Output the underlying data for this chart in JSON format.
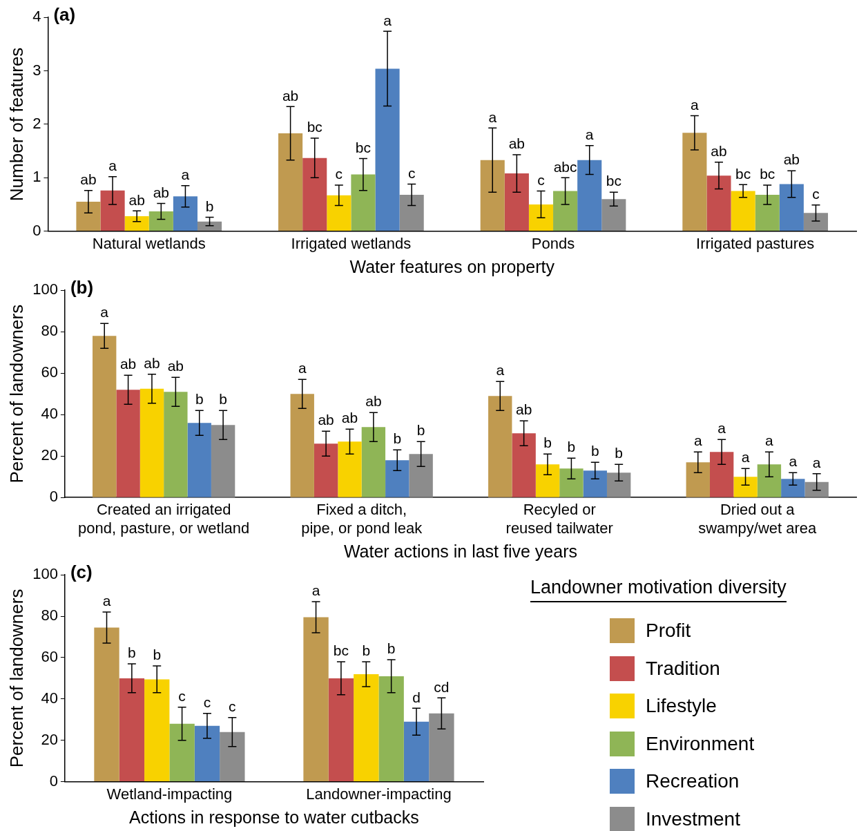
{
  "chart_data": [
    {
      "type": "bar",
      "title": "(a)",
      "xlabel": "Water features on property",
      "ylabel": "Number of features",
      "categories": [
        "Natural wetlands",
        "Irrigated wetlands",
        "Ponds",
        "Irrigated pastures"
      ],
      "ylim": [
        0,
        4
      ],
      "yticks": [
        0,
        1,
        2,
        3,
        4
      ],
      "grid": false,
      "series": [
        {
          "color": "#c09a50",
          "values": [
            0.55,
            1.83,
            1.33,
            1.84
          ],
          "errors": [
            0.21,
            0.5,
            0.6,
            0.32
          ],
          "value_labels": [
            "ab",
            "ab",
            "a",
            "a"
          ]
        },
        {
          "color": "#c44e4e",
          "values": [
            0.76,
            1.37,
            1.08,
            1.04
          ],
          "errors": [
            0.26,
            0.37,
            0.35,
            0.25
          ],
          "value_labels": [
            "a",
            "bc",
            "ab",
            "ab"
          ]
        },
        {
          "color": "#f8d200",
          "values": [
            0.28,
            0.67,
            0.5,
            0.75
          ],
          "errors": [
            0.1,
            0.19,
            0.25,
            0.12
          ],
          "value_labels": [
            "ab",
            "c",
            "c",
            "bc"
          ]
        },
        {
          "color": "#8fb556",
          "values": [
            0.37,
            1.06,
            0.75,
            0.68
          ],
          "errors": [
            0.15,
            0.3,
            0.25,
            0.18
          ],
          "value_labels": [
            "ab",
            "bc",
            "abc",
            "bc"
          ]
        },
        {
          "color": "#4f80bf",
          "values": [
            0.65,
            3.04,
            1.33,
            0.88
          ],
          "errors": [
            0.2,
            0.7,
            0.27,
            0.25
          ],
          "value_labels": [
            "a",
            "a",
            "a",
            "ab"
          ]
        },
        {
          "color": "#8c8c8c",
          "values": [
            0.18,
            0.68,
            0.6,
            0.34
          ],
          "errors": [
            0.08,
            0.2,
            0.13,
            0.15
          ],
          "value_labels": [
            "b",
            "c",
            "bc",
            "c"
          ]
        }
      ]
    },
    {
      "type": "bar",
      "title": "(b)",
      "xlabel": "Water actions in last five years",
      "ylabel": "Percent of landowners",
      "categories": [
        "Created an irrigated\npond, pasture, or wetland",
        "Fixed a ditch,\npipe, or pond leak",
        "Recyled or\nreused tailwater",
        "Dried out a\nswampy/wet area"
      ],
      "ylim": [
        0,
        100
      ],
      "yticks": [
        0,
        20,
        40,
        60,
        80,
        100
      ],
      "grid": false,
      "series": [
        {
          "color": "#c09a50",
          "values": [
            78,
            50,
            49,
            17
          ],
          "errors": [
            6,
            7,
            7,
            5
          ],
          "value_labels": [
            "a",
            "a",
            "a",
            "a"
          ]
        },
        {
          "color": "#c44e4e",
          "values": [
            52,
            26,
            31,
            22
          ],
          "errors": [
            7,
            6,
            6,
            6
          ],
          "value_labels": [
            "ab",
            "ab",
            "ab",
            "a"
          ]
        },
        {
          "color": "#f8d200",
          "values": [
            52.5,
            27,
            16,
            10
          ],
          "errors": [
            7,
            6,
            5,
            4
          ],
          "value_labels": [
            "ab",
            "ab",
            "b",
            "a"
          ]
        },
        {
          "color": "#8fb556",
          "values": [
            51,
            34,
            14,
            16
          ],
          "errors": [
            7,
            7,
            5,
            6
          ],
          "value_labels": [
            "ab",
            "ab",
            "b",
            "a"
          ]
        },
        {
          "color": "#4f80bf",
          "values": [
            36,
            18,
            13,
            9
          ],
          "errors": [
            6,
            5,
            4,
            3
          ],
          "value_labels": [
            "b",
            "b",
            "b",
            "a"
          ]
        },
        {
          "color": "#8c8c8c",
          "values": [
            35,
            21,
            12,
            7.5
          ],
          "errors": [
            7,
            6,
            4,
            4
          ],
          "value_labels": [
            "b",
            "b",
            "b",
            "a"
          ]
        }
      ]
    },
    {
      "type": "bar",
      "title": "(c)",
      "xlabel": "Actions in response to water cutbacks",
      "ylabel": "Percent of landowners",
      "categories": [
        "Wetland-impacting",
        "Landowner-impacting"
      ],
      "ylim": [
        0,
        100
      ],
      "yticks": [
        0,
        20,
        40,
        60,
        80,
        100
      ],
      "grid": false,
      "legend": "right",
      "legend_title": "Landowner motivation diversity",
      "series": [
        {
          "name": "Profit",
          "color": "#c09a50",
          "values": [
            74.5,
            79.5
          ],
          "errors": [
            7.5,
            7.5
          ],
          "value_labels": [
            "a",
            "a"
          ]
        },
        {
          "name": "Tradition",
          "color": "#c44e4e",
          "values": [
            50,
            50
          ],
          "errors": [
            7,
            8
          ],
          "value_labels": [
            "b",
            "bc"
          ]
        },
        {
          "name": "Lifestyle",
          "color": "#f8d200",
          "values": [
            49.5,
            52
          ],
          "errors": [
            6.5,
            6
          ],
          "value_labels": [
            "b",
            "b"
          ]
        },
        {
          "name": "Environment",
          "color": "#8fb556",
          "values": [
            28,
            51
          ],
          "errors": [
            8,
            8
          ],
          "value_labels": [
            "c",
            "b"
          ]
        },
        {
          "name": "Recreation",
          "color": "#4f80bf",
          "values": [
            27,
            29
          ],
          "errors": [
            6,
            6.5
          ],
          "value_labels": [
            "c",
            "d"
          ]
        },
        {
          "name": "Investment",
          "color": "#8c8c8c",
          "values": [
            24,
            33
          ],
          "errors": [
            7,
            7.5
          ],
          "value_labels": [
            "c",
            "cd"
          ]
        }
      ]
    }
  ]
}
